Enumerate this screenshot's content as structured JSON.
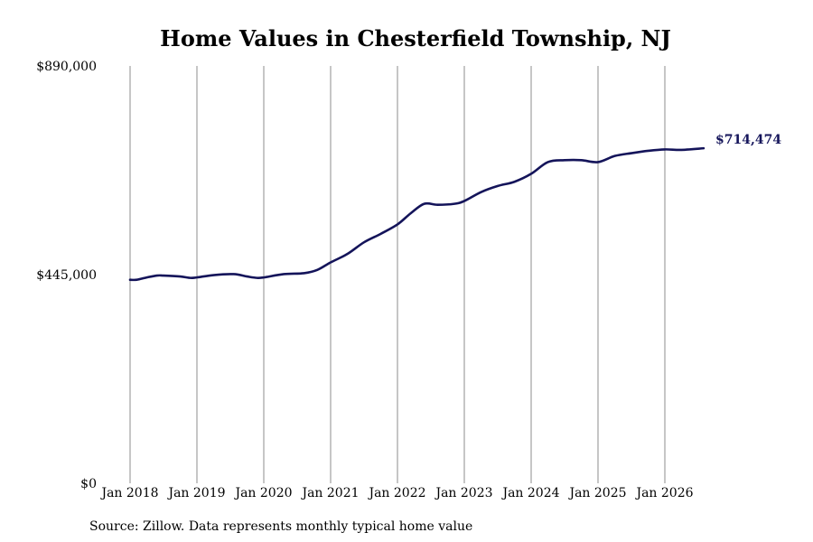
{
  "chart_data": {
    "type": "line",
    "title": "Home Values in Chesterfield Township, NJ",
    "source": "Source: Zillow. Data represents monthly typical home value",
    "ylim": [
      0,
      890000
    ],
    "y_ticks": [
      {
        "value": 0,
        "label": "$0"
      },
      {
        "value": 445000,
        "label": "$445,000"
      },
      {
        "value": 890000,
        "label": "$890,000"
      }
    ],
    "x_ticks": [
      {
        "value": 2018,
        "label": "Jan 2018"
      },
      {
        "value": 2019,
        "label": "Jan 2019"
      },
      {
        "value": 2020,
        "label": "Jan 2020"
      },
      {
        "value": 2021,
        "label": "Jan 2021"
      },
      {
        "value": 2022,
        "label": "Jan 2022"
      },
      {
        "value": 2023,
        "label": "Jan 2023"
      },
      {
        "value": 2024,
        "label": "Jan 2024"
      },
      {
        "value": 2025,
        "label": "Jan 2025"
      },
      {
        "value": 2026,
        "label": "Jan 2026"
      }
    ],
    "xlim": [
      2018,
      2026.6
    ],
    "grid": {
      "vertical": true,
      "horizontal": false
    },
    "line_color": "#14145a",
    "grid_color": "#8c8c8c",
    "end_label": "$714,474",
    "series": [
      {
        "x": [
          2018.0,
          2018.1,
          2018.25,
          2018.4,
          2018.5,
          2018.75,
          2018.9,
          2019.0,
          2019.25,
          2019.55,
          2019.75,
          2019.9,
          2020.0,
          2020.3,
          2020.6,
          2020.8,
          2021.0,
          2021.25,
          2021.5,
          2021.75,
          2022.0,
          2022.2,
          2022.4,
          2022.6,
          2022.85,
          2023.0,
          2023.25,
          2023.5,
          2023.75,
          2024.0,
          2024.25,
          2024.5,
          2024.75,
          2025.0,
          2025.25,
          2025.5,
          2025.75,
          2026.0,
          2026.25,
          2026.58
        ],
        "y": [
          434000,
          434000,
          439000,
          443000,
          443000,
          441000,
          438000,
          439000,
          444000,
          446000,
          441000,
          438000,
          439000,
          446000,
          448000,
          455000,
          471000,
          489000,
          514000,
          532000,
          552000,
          576000,
          596000,
          594000,
          596000,
          602000,
          621000,
          634000,
          643000,
          660000,
          685000,
          689000,
          689000,
          685000,
          698000,
          704000,
          709000,
          712000,
          711000,
          714474
        ]
      }
    ]
  }
}
